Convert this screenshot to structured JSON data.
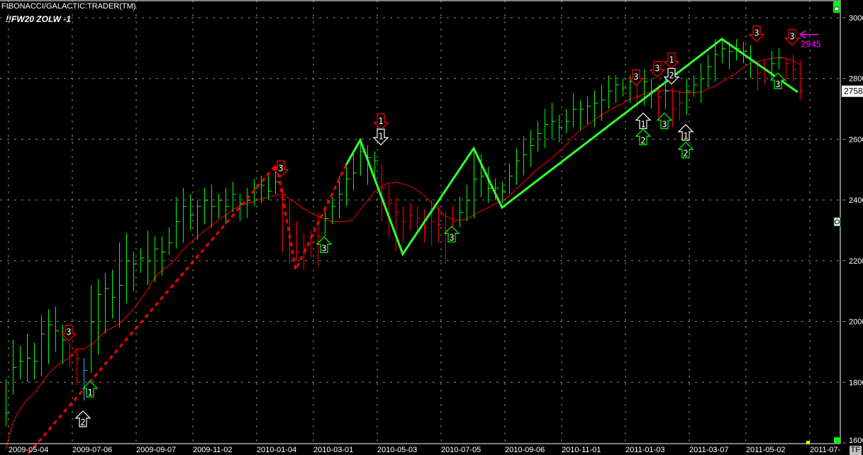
{
  "header": {
    "title": "FIBONACCI/GALACTIC:TRADER(TM)",
    "symbol": "!!FW20 ZOLW -1"
  },
  "footer": {
    "timeframe_button": "TF"
  },
  "colors": {
    "up": "#00ff00",
    "down": "#ff0000",
    "neutral": "#4a9fff",
    "zigzag_up": "#33ff33",
    "ma": "#ff0000",
    "projection": "#ff00ff",
    "grid": "#8a8a8a",
    "axis": "#ffffff"
  },
  "chart_data": {
    "type": "ohlc",
    "title": "",
    "ylim": [
      1600,
      3000
    ],
    "y_ticks": [
      1600,
      1800,
      2000,
      2200,
      2400,
      2600,
      2800,
      3000
    ],
    "x_ticks": [
      {
        "label": "2009-05-04",
        "bar": 0.4
      },
      {
        "label": "2009-07-06",
        "bar": 9.4
      },
      {
        "label": "2009-09-07",
        "bar": 18.4
      },
      {
        "label": "2009-11-02",
        "bar": 26.4
      },
      {
        "label": "2010-01-04",
        "bar": 35.4
      },
      {
        "label": "2010-03-01",
        "bar": 43.4
      },
      {
        "label": "2010-05-03",
        "bar": 52.4
      },
      {
        "label": "2010-07-05",
        "bar": 61.4
      },
      {
        "label": "2010-09-06",
        "bar": 70.4
      },
      {
        "label": "2010-11-01",
        "bar": 78.4
      },
      {
        "label": "2011-01-03",
        "bar": 87.4
      },
      {
        "label": "2011-03-07",
        "bar": 96.4
      },
      {
        "label": "2011-05-02",
        "bar": 104.4
      },
      {
        "label": "2011-07-",
        "bar": 113.4
      }
    ],
    "grid": true,
    "last_price": "2758",
    "projection": {
      "label": "2945",
      "price": 2945
    },
    "bars": [
      [
        1810,
        1655,
        1700,
        "g"
      ],
      [
        1940,
        1760,
        1850,
        "g"
      ],
      [
        1920,
        1810,
        1870,
        "g"
      ],
      [
        1960,
        1800,
        1880,
        "g"
      ],
      [
        1930,
        1810,
        1870,
        "g"
      ],
      [
        2020,
        1820,
        1960,
        "g"
      ],
      [
        2040,
        1860,
        1990,
        "g"
      ],
      [
        2050,
        1900,
        1970,
        "g"
      ],
      [
        1990,
        1860,
        1940,
        "g"
      ],
      [
        1930,
        1850,
        1890,
        "r"
      ],
      [
        1910,
        1790,
        1880,
        "r"
      ],
      [
        1880,
        1740,
        1840,
        "b"
      ],
      [
        2120,
        1830,
        2000,
        "g"
      ],
      [
        2140,
        1890,
        2090,
        "g"
      ],
      [
        2160,
        1960,
        2110,
        "g"
      ],
      [
        2170,
        2010,
        2080,
        "g"
      ],
      [
        2260,
        1980,
        2120,
        "g"
      ],
      [
        2290,
        2060,
        2200,
        "g"
      ],
      [
        2230,
        2100,
        2190,
        "g"
      ],
      [
        2240,
        2160,
        2210,
        "g"
      ],
      [
        2300,
        2120,
        2200,
        "g"
      ],
      [
        2280,
        2130,
        2240,
        "g"
      ],
      [
        2280,
        2150,
        2230,
        "g"
      ],
      [
        2310,
        2220,
        2260,
        "g"
      ],
      [
        2410,
        2240,
        2330,
        "g"
      ],
      [
        2440,
        2260,
        2380,
        "g"
      ],
      [
        2420,
        2300,
        2350,
        "g"
      ],
      [
        2400,
        2270,
        2380,
        "g"
      ],
      [
        2440,
        2320,
        2400,
        "g"
      ],
      [
        2450,
        2310,
        2380,
        "g"
      ],
      [
        2420,
        2340,
        2400,
        "g"
      ],
      [
        2440,
        2320,
        2380,
        "g"
      ],
      [
        2460,
        2360,
        2420,
        "g"
      ],
      [
        2420,
        2330,
        2390,
        "g"
      ],
      [
        2440,
        2340,
        2400,
        "g"
      ],
      [
        2470,
        2380,
        2440,
        "g"
      ],
      [
        2480,
        2390,
        2450,
        "g"
      ],
      [
        2490,
        2400,
        2430,
        "g"
      ],
      [
        2510,
        2420,
        2460,
        "g"
      ],
      [
        2440,
        2230,
        2420,
        "r"
      ],
      [
        2400,
        2190,
        2250,
        "r"
      ],
      [
        2330,
        2200,
        2230,
        "r"
      ],
      [
        2290,
        2170,
        2240,
        "r"
      ],
      [
        2300,
        2210,
        2260,
        "r"
      ],
      [
        2360,
        2180,
        2280,
        "r"
      ],
      [
        2380,
        2280,
        2340,
        "g"
      ],
      [
        2410,
        2320,
        2380,
        "g"
      ],
      [
        2480,
        2340,
        2420,
        "g"
      ],
      [
        2510,
        2380,
        2470,
        "g"
      ],
      [
        2560,
        2430,
        2490,
        "g"
      ],
      [
        2600,
        2480,
        2560,
        "g"
      ],
      [
        2580,
        2450,
        2540,
        "g"
      ],
      [
        2560,
        2460,
        2530,
        "g"
      ],
      [
        2520,
        2330,
        2440,
        "r"
      ],
      [
        2450,
        2280,
        2390,
        "r"
      ],
      [
        2410,
        2230,
        2360,
        "r"
      ],
      [
        2380,
        2260,
        2330,
        "r"
      ],
      [
        2390,
        2300,
        2350,
        "r"
      ],
      [
        2380,
        2290,
        2340,
        "r"
      ],
      [
        2370,
        2260,
        2310,
        "r"
      ],
      [
        2400,
        2250,
        2330,
        "r"
      ],
      [
        2380,
        2260,
        2320,
        "r"
      ],
      [
        2360,
        2190,
        2300,
        "r"
      ],
      [
        2380,
        2290,
        2330,
        "r"
      ],
      [
        2410,
        2310,
        2360,
        "g"
      ],
      [
        2450,
        2330,
        2400,
        "g"
      ],
      [
        2560,
        2340,
        2470,
        "g"
      ],
      [
        2550,
        2410,
        2480,
        "g"
      ],
      [
        2510,
        2390,
        2440,
        "g"
      ],
      [
        2470,
        2400,
        2440,
        "g"
      ],
      [
        2460,
        2390,
        2430,
        "g"
      ],
      [
        2520,
        2420,
        2480,
        "g"
      ],
      [
        2570,
        2450,
        2530,
        "g"
      ],
      [
        2610,
        2480,
        2550,
        "g"
      ],
      [
        2630,
        2510,
        2580,
        "g"
      ],
      [
        2660,
        2560,
        2620,
        "g"
      ],
      [
        2700,
        2570,
        2650,
        "g"
      ],
      [
        2720,
        2600,
        2660,
        "g"
      ],
      [
        2680,
        2590,
        2640,
        "g"
      ],
      [
        2700,
        2620,
        2660,
        "g"
      ],
      [
        2750,
        2640,
        2700,
        "g"
      ],
      [
        2730,
        2630,
        2700,
        "g"
      ],
      [
        2740,
        2650,
        2710,
        "g"
      ],
      [
        2760,
        2640,
        2720,
        "g"
      ],
      [
        2780,
        2660,
        2730,
        "g"
      ],
      [
        2810,
        2700,
        2760,
        "g"
      ],
      [
        2810,
        2720,
        2780,
        "g"
      ],
      [
        2800,
        2740,
        2770,
        "g"
      ],
      [
        2810,
        2720,
        2790,
        "g"
      ],
      [
        2800,
        2700,
        2740,
        "r"
      ],
      [
        2830,
        2710,
        2790,
        "g"
      ],
      [
        2800,
        2700,
        2760,
        "g"
      ],
      [
        2780,
        2670,
        2740,
        "r"
      ],
      [
        2800,
        2700,
        2760,
        "g"
      ],
      [
        2770,
        2640,
        2700,
        "r"
      ],
      [
        2760,
        2660,
        2720,
        "r"
      ],
      [
        2800,
        2680,
        2760,
        "g"
      ],
      [
        2810,
        2740,
        2780,
        "g"
      ],
      [
        2850,
        2720,
        2800,
        "g"
      ],
      [
        2880,
        2770,
        2840,
        "g"
      ],
      [
        2930,
        2790,
        2880,
        "g"
      ],
      [
        2930,
        2850,
        2900,
        "g"
      ],
      [
        2920,
        2830,
        2890,
        "g"
      ],
      [
        2930,
        2860,
        2900,
        "g"
      ],
      [
        2920,
        2850,
        2890,
        "g"
      ],
      [
        2910,
        2800,
        2860,
        "g"
      ],
      [
        2850,
        2760,
        2820,
        "r"
      ],
      [
        2860,
        2780,
        2830,
        "r"
      ],
      [
        2890,
        2800,
        2850,
        "g"
      ],
      [
        2900,
        2830,
        2870,
        "g"
      ],
      [
        2870,
        2790,
        2850,
        "r"
      ],
      [
        2880,
        2790,
        2830,
        "r"
      ],
      [
        2860,
        2730,
        2760,
        "r"
      ]
    ],
    "zigzag_dashed": [
      [
        3.2,
        1565
      ],
      [
        38.2,
        2517
      ],
      [
        40.9,
        2170
      ],
      [
        48,
        2515
      ]
    ],
    "zigzag_solid": [
      [
        48,
        2515
      ],
      [
        50,
        2597
      ],
      [
        56,
        2222
      ],
      [
        66,
        2570
      ],
      [
        70,
        2375
      ],
      [
        101,
        2930
      ],
      [
        111.7,
        2755
      ]
    ],
    "signals": [
      {
        "bar": 8.9,
        "price": 1960,
        "dir": "down",
        "color": "red",
        "label": "3"
      },
      {
        "bar": 10.9,
        "price": 1677,
        "dir": "up",
        "color": "white",
        "label": "2"
      },
      {
        "bar": 11.9,
        "price": 1775,
        "dir": "up",
        "color": "green",
        "label": "1"
      },
      {
        "bar": 38.8,
        "price": 2500,
        "dir": "down",
        "color": "red",
        "label": "3"
      },
      {
        "bar": 44.9,
        "price": 2250,
        "dir": "up",
        "color": "green",
        "label": "3"
      },
      {
        "bar": 52.9,
        "price": 2655,
        "dir": "down",
        "color": "red",
        "label": "1"
      },
      {
        "bar": 52.9,
        "price": 2605,
        "dir": "down",
        "color": "white",
        "label": "1"
      },
      {
        "bar": 62.9,
        "price": 2285,
        "dir": "up",
        "color": "green",
        "label": "3"
      },
      {
        "bar": 88.9,
        "price": 2800,
        "dir": "down",
        "color": "red",
        "label": "3"
      },
      {
        "bar": 89.9,
        "price": 2658,
        "dir": "up",
        "color": "white",
        "label": "1"
      },
      {
        "bar": 89.9,
        "price": 2605,
        "dir": "up",
        "color": "green",
        "label": "2"
      },
      {
        "bar": 91.9,
        "price": 2828,
        "dir": "down",
        "color": "red",
        "label": "3"
      },
      {
        "bar": 92.9,
        "price": 2658,
        "dir": "up",
        "color": "green",
        "label": "3"
      },
      {
        "bar": 93.9,
        "price": 2856,
        "dir": "down",
        "color": "red",
        "label": "1"
      },
      {
        "bar": 93.9,
        "price": 2805,
        "dir": "down",
        "color": "white",
        "label": "2"
      },
      {
        "bar": 95.9,
        "price": 2620,
        "dir": "up",
        "color": "white",
        "label": "1"
      },
      {
        "bar": 95.9,
        "price": 2562,
        "dir": "up",
        "color": "green",
        "label": "2"
      },
      {
        "bar": 105.9,
        "price": 2945,
        "dir": "down",
        "color": "red",
        "label": "3"
      },
      {
        "bar": 110.9,
        "price": 2933,
        "dir": "down",
        "color": "red",
        "label": "3"
      },
      {
        "bar": 108.9,
        "price": 2790,
        "dir": "up",
        "color": "green",
        "label": "3"
      }
    ]
  }
}
